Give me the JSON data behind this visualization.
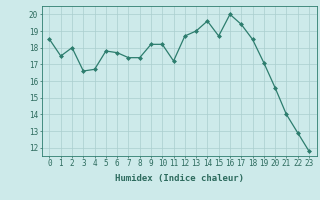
{
  "x": [
    0,
    1,
    2,
    3,
    4,
    5,
    6,
    7,
    8,
    9,
    10,
    11,
    12,
    13,
    14,
    15,
    16,
    17,
    18,
    19,
    20,
    21,
    22,
    23
  ],
  "y": [
    18.5,
    17.5,
    18.0,
    16.6,
    16.7,
    17.8,
    17.7,
    17.4,
    17.4,
    18.2,
    18.2,
    17.2,
    18.7,
    19.0,
    19.6,
    18.7,
    20.0,
    19.4,
    18.5,
    17.1,
    15.6,
    14.0,
    12.9,
    11.8
  ],
  "line_color": "#2d7d6e",
  "marker": "D",
  "marker_size": 2,
  "bg_color": "#cdeaea",
  "grid_color": "#aacece",
  "xlabel": "Humidex (Indice chaleur)",
  "ylim": [
    11.5,
    20.5
  ],
  "yticks": [
    12,
    13,
    14,
    15,
    16,
    17,
    18,
    19,
    20
  ],
  "xticks": [
    0,
    1,
    2,
    3,
    4,
    5,
    6,
    7,
    8,
    9,
    10,
    11,
    12,
    13,
    14,
    15,
    16,
    17,
    18,
    19,
    20,
    21,
    22,
    23
  ],
  "label_fontsize": 6.5,
  "tick_fontsize": 5.5,
  "tick_color": "#2d6b5e",
  "spine_color": "#2d7d6e",
  "line_width": 0.9
}
